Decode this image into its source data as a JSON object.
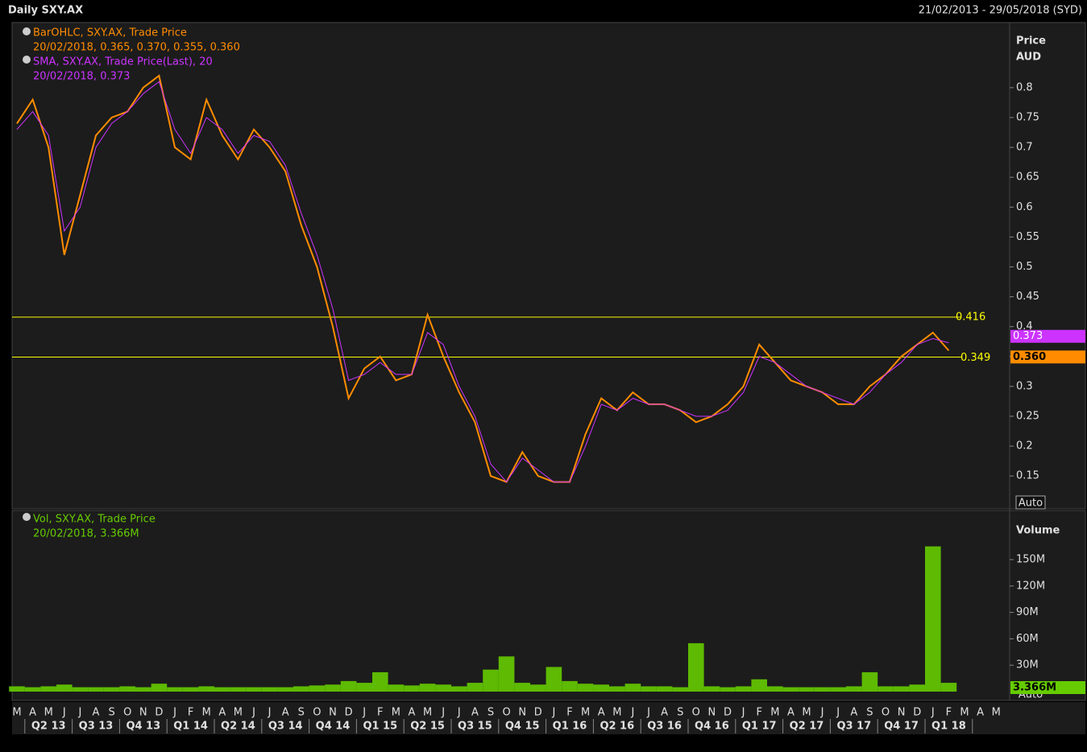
{
  "header": {
    "title": "Daily SXY.AX",
    "range": "21/02/2013 - 29/05/2018 (SYD)"
  },
  "chart_data": [
    {
      "type": "line",
      "axis_title": "Price",
      "axis_unit": "AUD",
      "auto_button": "Auto",
      "categories": [
        "M",
        "A",
        "M",
        "J",
        "J",
        "A",
        "S",
        "O",
        "N",
        "D",
        "J",
        "F",
        "M",
        "A",
        "M",
        "J",
        "J",
        "A",
        "S",
        "O",
        "N",
        "D",
        "J",
        "F",
        "M",
        "A",
        "M",
        "J",
        "J",
        "A",
        "S",
        "O",
        "N",
        "D",
        "J",
        "F",
        "M",
        "A",
        "M",
        "J",
        "J",
        "A",
        "S",
        "O",
        "N",
        "D",
        "J",
        "F",
        "M",
        "A",
        "M",
        "J",
        "J",
        "A",
        "S",
        "O",
        "N",
        "D",
        "J",
        "F",
        "M",
        "A",
        "M"
      ],
      "quarters": [
        "Q2 13",
        "Q3 13",
        "Q4 13",
        "Q1 14",
        "Q2 14",
        "Q3 14",
        "Q4 14",
        "Q1 15",
        "Q2 15",
        "Q3 15",
        "Q4 15",
        "Q1 16",
        "Q2 16",
        "Q3 16",
        "Q4 16",
        "Q1 17",
        "Q2 17",
        "Q3 17",
        "Q4 17",
        "Q1 18"
      ],
      "series": [
        {
          "name": "BarOHLC, SXY.AX, Trade Price",
          "legend": "20/02/2018, 0.365, 0.370, 0.355, 0.360",
          "badge": "0.360",
          "color": "#ff8c00",
          "values": [
            0.74,
            0.78,
            0.7,
            0.52,
            0.62,
            0.72,
            0.75,
            0.76,
            0.8,
            0.82,
            0.7,
            0.68,
            0.78,
            0.72,
            0.68,
            0.73,
            0.7,
            0.66,
            0.57,
            0.5,
            0.4,
            0.28,
            0.33,
            0.35,
            0.31,
            0.32,
            0.42,
            0.35,
            0.29,
            0.24,
            0.15,
            0.14,
            0.19,
            0.15,
            0.14,
            0.14,
            0.22,
            0.28,
            0.26,
            0.29,
            0.27,
            0.27,
            0.26,
            0.24,
            0.25,
            0.27,
            0.3,
            0.37,
            0.34,
            0.31,
            0.3,
            0.29,
            0.27,
            0.27,
            0.3,
            0.32,
            0.35,
            0.37,
            0.39,
            0.36,
            null,
            null,
            null
          ]
        },
        {
          "name": "SMA, SXY.AX, Trade Price(Last),  20",
          "legend": "20/02/2018, 0.373",
          "badge": "0.373",
          "color": "#cc33ff",
          "values": [
            0.73,
            0.76,
            0.72,
            0.56,
            0.6,
            0.7,
            0.74,
            0.76,
            0.79,
            0.81,
            0.73,
            0.69,
            0.75,
            0.73,
            0.69,
            0.72,
            0.71,
            0.67,
            0.59,
            0.52,
            0.43,
            0.31,
            0.32,
            0.34,
            0.32,
            0.32,
            0.39,
            0.37,
            0.3,
            0.25,
            0.17,
            0.14,
            0.18,
            0.16,
            0.14,
            0.14,
            0.2,
            0.27,
            0.26,
            0.28,
            0.27,
            0.27,
            0.26,
            0.25,
            0.25,
            0.26,
            0.29,
            0.35,
            0.34,
            0.32,
            0.3,
            0.29,
            0.28,
            0.27,
            0.29,
            0.32,
            0.34,
            0.37,
            0.38,
            0.373,
            null,
            null,
            null
          ]
        }
      ],
      "hlines": [
        0.416,
        0.349
      ],
      "ylim": [
        0.095,
        0.909
      ],
      "yticks": [
        0.15,
        0.2,
        0.25,
        0.3,
        0.35,
        0.4,
        0.45,
        0.5,
        0.55,
        0.6,
        0.65,
        0.7,
        0.75,
        0.8
      ]
    },
    {
      "type": "bar",
      "axis_title": "Volume",
      "auto_button": "Auto",
      "series": [
        {
          "name": "Vol, SXY.AX, Trade Price",
          "legend": "20/02/2018, 3.366M",
          "badge": "3.366M",
          "color": "#66cc00",
          "values": [
            6000000,
            5000000,
            6000000,
            8000000,
            5000000,
            5000000,
            5000000,
            6000000,
            5000000,
            9000000,
            5000000,
            5000000,
            6000000,
            5000000,
            5000000,
            5000000,
            5000000,
            5000000,
            6000000,
            7000000,
            8000000,
            12000000,
            10000000,
            22000000,
            8000000,
            7000000,
            9000000,
            8000000,
            6000000,
            10000000,
            25000000,
            40000000,
            10000000,
            8000000,
            28000000,
            12000000,
            9000000,
            8000000,
            6000000,
            9000000,
            6000000,
            6000000,
            5000000,
            55000000,
            6000000,
            5000000,
            6000000,
            14000000,
            6000000,
            5000000,
            5000000,
            5000000,
            5000000,
            6000000,
            22000000,
            6000000,
            6000000,
            8000000,
            165000000,
            10000000,
            null,
            null,
            null
          ]
        }
      ],
      "ylim": [
        0,
        204000000
      ],
      "yticks": [
        {
          "value": 30000000,
          "label": "30M"
        },
        {
          "value": 60000000,
          "label": "60M"
        },
        {
          "value": 90000000,
          "label": "90M"
        },
        {
          "value": 120000000,
          "label": "120M"
        },
        {
          "value": 150000000,
          "label": "150M"
        }
      ]
    }
  ]
}
